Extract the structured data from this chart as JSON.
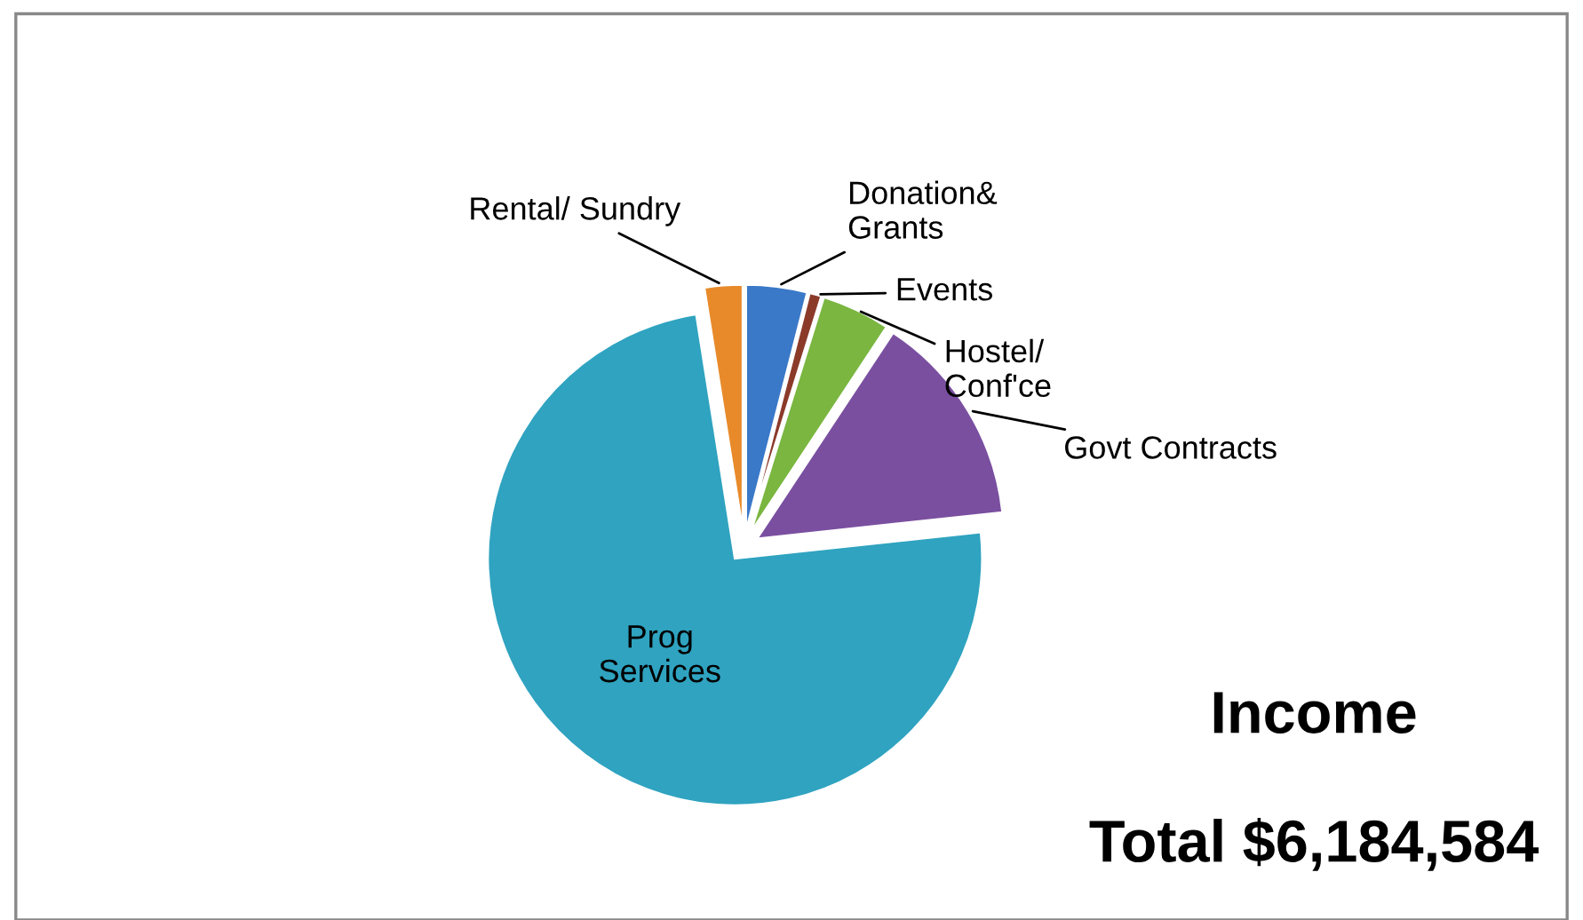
{
  "chart_data": {
    "type": "pie",
    "title": "Income",
    "subtitle": "Total $6,184,584",
    "categories": [
      "Donation&\nGrants",
      "Events",
      "Hostel/\nConf'ce",
      "Govt Contracts",
      "Prog\nServices",
      "Rental/ Sundry"
    ],
    "values": [
      4,
      0.8,
      4.5,
      14,
      74.2,
      2.5
    ],
    "colors": [
      "#3a78c8",
      "#8b3a2a",
      "#7ab640",
      "#7a4fa0",
      "#2fa3c0",
      "#e88a2a"
    ]
  }
}
